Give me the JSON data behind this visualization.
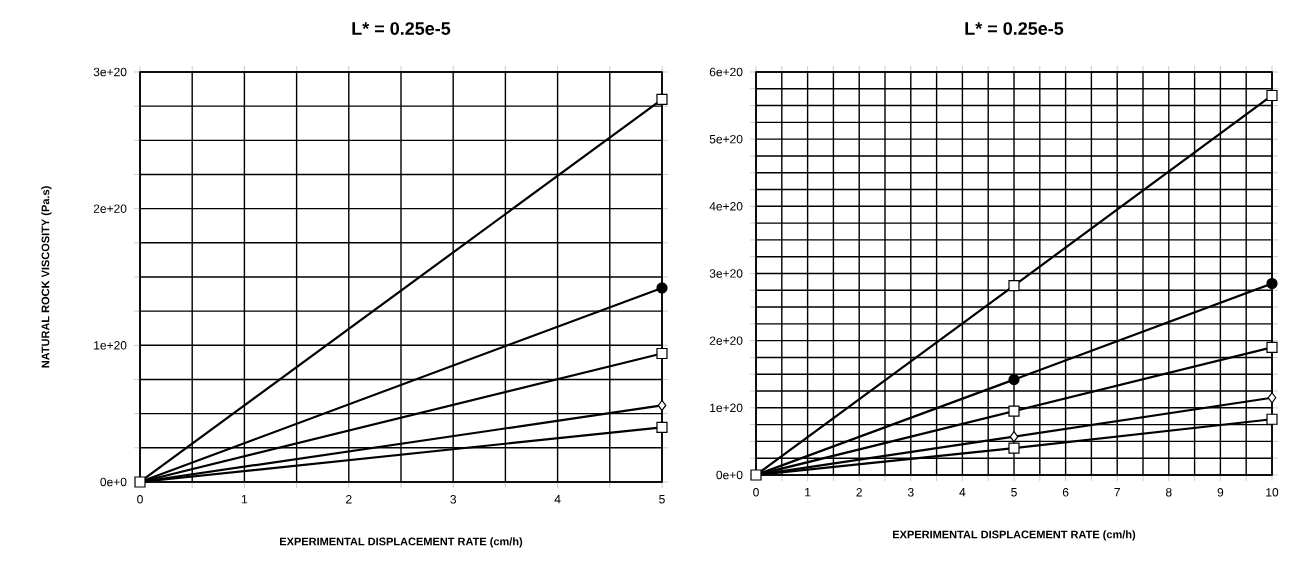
{
  "chart_data": [
    {
      "type": "line",
      "title": "L* = 0.25e-5",
      "xlabel": "EXPERIMENTAL DISPLACEMENT RATE (cm/h)",
      "ylabel": "NATURAL ROCK VISCOSITY (Pa.s)",
      "grid": true,
      "line_style": "solid",
      "xlim": [
        0,
        5
      ],
      "ylim": [
        0,
        3e+20
      ],
      "xticks": [
        0,
        {
          "value": 0.5,
          "label": null
        },
        1,
        {
          "value": 1.5,
          "label": null
        },
        2,
        {
          "value": 2.5,
          "label": null
        },
        3,
        {
          "value": 3.5,
          "label": null
        },
        4,
        {
          "value": 4.5,
          "label": null
        },
        5
      ],
      "yticks": [
        {
          "value": 0,
          "label": "0e+0"
        },
        {
          "value": 2.5e+19,
          "label": null
        },
        {
          "value": 5e+19,
          "label": null
        },
        {
          "value": 7.5e+19,
          "label": null
        },
        {
          "value": 1e+20,
          "label": "1e+20"
        },
        {
          "value": 1.25e+20,
          "label": null
        },
        {
          "value": 1.5e+20,
          "label": null
        },
        {
          "value": 1.75e+20,
          "label": null
        },
        {
          "value": 2e+20,
          "label": "2e+20"
        },
        {
          "value": 2.25e+20,
          "label": null
        },
        {
          "value": 2.5e+20,
          "label": null
        },
        {
          "value": 2.75e+20,
          "label": null
        },
        {
          "value": 3e+20,
          "label": "3e+20"
        }
      ],
      "x": [
        0,
        5
      ],
      "series": [
        {
          "color": "#000000",
          "marker": "square",
          "values": [
            0,
            2.8e+20
          ]
        },
        {
          "color": "#000000",
          "marker": "circle",
          "values": [
            0,
            1.42e+20
          ]
        },
        {
          "color": "#000000",
          "marker": "square",
          "values": [
            0,
            9.4e+19
          ]
        },
        {
          "color": "#000000",
          "marker": "diamond",
          "values": [
            0,
            5.6e+19
          ]
        },
        {
          "color": "#000000",
          "marker": "square",
          "values": [
            0,
            4e+19
          ]
        }
      ]
    },
    {
      "type": "line",
      "title": "L* = 0.25e-5",
      "xlabel": "EXPERIMENTAL DISPLACEMENT RATE (cm/h)",
      "grid": true,
      "line_style": "solid",
      "xlim": [
        0,
        10
      ],
      "ylim": [
        0,
        6e+20
      ],
      "xticks": [
        0,
        {
          "value": 0.5,
          "label": null
        },
        1,
        {
          "value": 1.5,
          "label": null
        },
        2,
        {
          "value": 2.5,
          "label": null
        },
        3,
        {
          "value": 3.5,
          "label": null
        },
        4,
        {
          "value": 4.5,
          "label": null
        },
        5,
        {
          "value": 5.5,
          "label": null
        },
        6,
        {
          "value": 6.5,
          "label": null
        },
        7,
        {
          "value": 7.5,
          "label": null
        },
        8,
        {
          "value": 8.5,
          "label": null
        },
        9,
        {
          "value": 9.5,
          "label": null
        },
        10
      ],
      "yticks": [
        {
          "value": 0,
          "label": "0e+0"
        },
        {
          "value": 2.5e+19,
          "label": null
        },
        {
          "value": 5e+19,
          "label": null
        },
        {
          "value": 7.5e+19,
          "label": null
        },
        {
          "value": 1e+20,
          "label": "1e+20"
        },
        {
          "value": 1.25e+20,
          "label": null
        },
        {
          "value": 1.5e+20,
          "label": null
        },
        {
          "value": 1.75e+20,
          "label": null
        },
        {
          "value": 2e+20,
          "label": "2e+20"
        },
        {
          "value": 2.25e+20,
          "label": null
        },
        {
          "value": 2.5e+20,
          "label": null
        },
        {
          "value": 2.75e+20,
          "label": null
        },
        {
          "value": 3e+20,
          "label": "3e+20"
        },
        {
          "value": 3.25e+20,
          "label": null
        },
        {
          "value": 3.5e+20,
          "label": null
        },
        {
          "value": 3.75e+20,
          "label": null
        },
        {
          "value": 4e+20,
          "label": "4e+20"
        },
        {
          "value": 4.25e+20,
          "label": null
        },
        {
          "value": 4.5e+20,
          "label": null
        },
        {
          "value": 4.75e+20,
          "label": null
        },
        {
          "value": 5e+20,
          "label": "5e+20"
        },
        {
          "value": 5.25e+20,
          "label": null
        },
        {
          "value": 5.5e+20,
          "label": null
        },
        {
          "value": 5.75e+20,
          "label": null
        },
        {
          "value": 6e+20,
          "label": "6e+20"
        }
      ],
      "x": [
        0,
        5,
        10
      ],
      "series": [
        {
          "color": "#000000",
          "marker": "square",
          "values": [
            0,
            2.82e+20,
            5.65e+20
          ]
        },
        {
          "color": "#000000",
          "marker": "circle",
          "values": [
            0,
            1.42e+20,
            2.85e+20
          ]
        },
        {
          "color": "#000000",
          "marker": "square",
          "values": [
            0,
            9.5e+19,
            1.9e+20
          ]
        },
        {
          "color": "#000000",
          "marker": "diamond",
          "values": [
            0,
            5.7e+19,
            1.15e+20
          ]
        },
        {
          "color": "#000000",
          "marker": "square",
          "values": [
            0,
            4e+19,
            8.3e+19
          ]
        }
      ]
    }
  ]
}
